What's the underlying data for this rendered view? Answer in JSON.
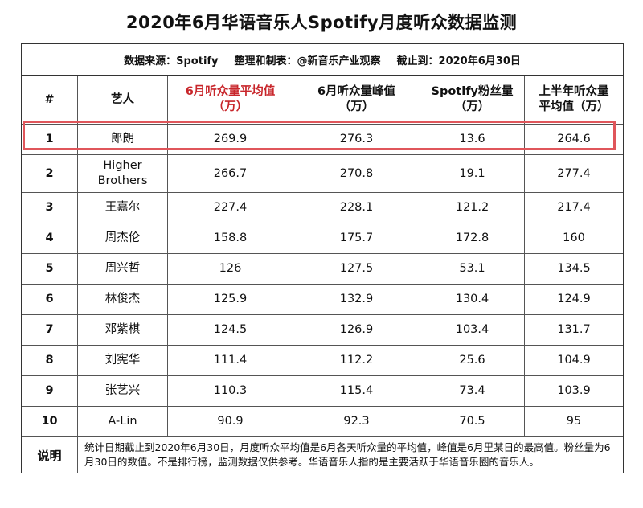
{
  "title": "2020年6月华语音乐人Spotify月度听众数据监测",
  "meta": {
    "source": "数据来源：Spotify",
    "maker": "整理和制表：@新音乐产业观察",
    "cutoff": "截止到：2020年6月30日"
  },
  "headers": [
    {
      "line1": "#",
      "line2": ""
    },
    {
      "line1": "艺人",
      "line2": ""
    },
    {
      "line1": "6月听众量平均值",
      "line2": "（万）"
    },
    {
      "line1": "6月听众量峰值",
      "line2": "（万）"
    },
    {
      "line1": "Spotify粉丝量",
      "line2": "（万）"
    },
    {
      "line1": "上半年听众量",
      "line2": "平均值（万）"
    }
  ],
  "rows": [
    {
      "rank": "1",
      "artist": "郎朗",
      "avg": "269.9",
      "peak": "276.3",
      "fans": "13.6",
      "half": "264.6"
    },
    {
      "rank": "2",
      "artist": "Higher Brothers",
      "avg": "266.7",
      "peak": "270.8",
      "fans": "19.1",
      "half": "277.4"
    },
    {
      "rank": "3",
      "artist": "王嘉尔",
      "avg": "227.4",
      "peak": "228.1",
      "fans": "121.2",
      "half": "217.4"
    },
    {
      "rank": "4",
      "artist": "周杰伦",
      "avg": "158.8",
      "peak": "175.7",
      "fans": "172.8",
      "half": "160"
    },
    {
      "rank": "5",
      "artist": "周兴哲",
      "avg": "126",
      "peak": "127.5",
      "fans": "53.1",
      "half": "134.5"
    },
    {
      "rank": "6",
      "artist": "林俊杰",
      "avg": "125.9",
      "peak": "132.9",
      "fans": "130.4",
      "half": "124.9"
    },
    {
      "rank": "7",
      "artist": "邓紫棋",
      "avg": "124.5",
      "peak": "126.9",
      "fans": "103.4",
      "half": "131.7"
    },
    {
      "rank": "8",
      "artist": "刘宪华",
      "avg": "111.4",
      "peak": "112.2",
      "fans": "25.6",
      "half": "104.9"
    },
    {
      "rank": "9",
      "artist": "张艺兴",
      "avg": "110.3",
      "peak": "115.4",
      "fans": "73.4",
      "half": "103.9"
    },
    {
      "rank": "10",
      "artist": "A-Lin",
      "avg": "90.9",
      "peak": "92.3",
      "fans": "70.5",
      "half": "95"
    }
  ],
  "note": {
    "label": "说明",
    "text": "统计日期截止到2020年6月30日，月度听众平均值是6月各天听众量的平均值，峰值是6月里某日的最高值。粉丝量为6月30日的数值。不是排行榜，监测数据仅供参考。华语音乐人指的是主要活跃于华语音乐圈的音乐人。"
  },
  "highlight_color": "#e0565b",
  "accent_color": "#c8262b"
}
